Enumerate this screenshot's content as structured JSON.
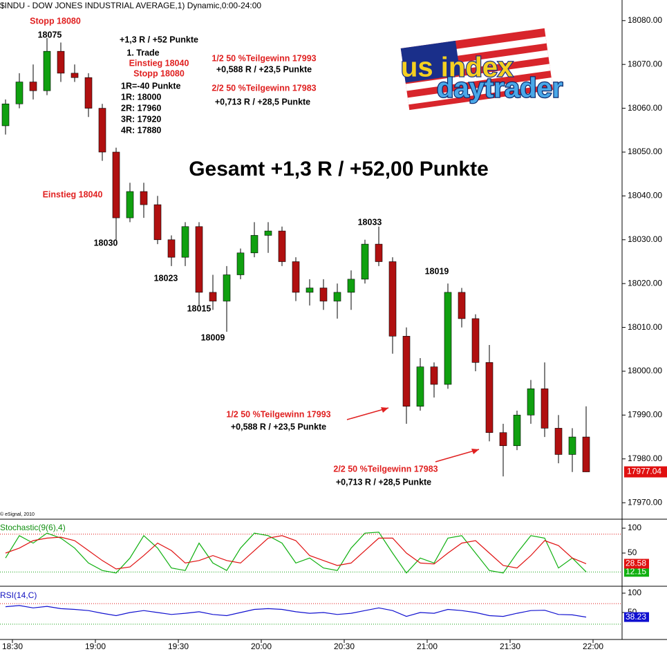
{
  "header": "$INDU - DOW JONES INDUSTRIAL AVERAGE,1) Dynamic,0:00-24:00",
  "copyright": "© eSignal, 2010",
  "logo": [
    "us index",
    "daytrader"
  ],
  "annotations": [
    {
      "text": "Stopp 18080",
      "color": "#e02020"
    },
    {
      "text": "18075",
      "color": "#000000"
    },
    {
      "text": "+1,3 R / +52 Punkte",
      "color": "#000000"
    },
    {
      "text": "1. Trade",
      "color": "#000000"
    },
    {
      "text": "Einstieg 18040",
      "color": "#e02020"
    },
    {
      "text": "Stopp 18080",
      "color": "#e02020"
    },
    {
      "text": "1R=-40 Punkte",
      "color": "#000000"
    },
    {
      "text": "1R: 18000",
      "color": "#000000"
    },
    {
      "text": "2R: 17960",
      "color": "#000000"
    },
    {
      "text": "3R: 17920",
      "color": "#000000"
    },
    {
      "text": "4R: 17880",
      "color": "#000000"
    },
    {
      "text": "1/2 50 %Teilgewinn 17993",
      "color": "#e02020"
    },
    {
      "text": "+0,588 R / +23,5 Punkte",
      "color": "#000000"
    },
    {
      "text": "2/2 50 %Teilgewinn 17983",
      "color": "#e02020"
    },
    {
      "text": "+0,713 R / +28,5 Punkte",
      "color": "#000000"
    },
    {
      "text": "Gesamt +1,3 R / +52,00 Punkte",
      "color": "#000000"
    },
    {
      "text": "Einstieg 18040",
      "color": "#e02020"
    },
    {
      "text": "18030",
      "color": "#000000"
    },
    {
      "text": "18023",
      "color": "#000000"
    },
    {
      "text": "18015",
      "color": "#000000"
    },
    {
      "text": "18009",
      "color": "#000000"
    },
    {
      "text": "18033",
      "color": "#000000"
    },
    {
      "text": "18019",
      "color": "#000000"
    },
    {
      "text": "1/2 50 %Teilgewinn 17993",
      "color": "#e02020"
    },
    {
      "text": "+0,588 R / +23,5 Punkte",
      "color": "#000000"
    },
    {
      "text": "2/2 50 %Teilgewinn 17983",
      "color": "#e02020"
    },
    {
      "text": "+0,713 R / +28,5 Punkte",
      "color": "#000000"
    }
  ],
  "chart_data": [
    {
      "type": "candlestick",
      "up_color": "#10a010",
      "down_color": "#b01010",
      "x": [
        1105,
        1110,
        1115,
        1120,
        1125,
        1130,
        1135,
        1140,
        1145,
        1150,
        1155,
        1160,
        1165,
        1170,
        1175,
        1180,
        1185,
        1190,
        1195,
        1200,
        1205,
        1210,
        1215,
        1220,
        1225,
        1230,
        1235,
        1240,
        1245,
        1250,
        1255,
        1260,
        1265,
        1270,
        1275,
        1280,
        1285,
        1290,
        1295,
        1300,
        1305,
        1310,
        1315
      ],
      "open": [
        18056,
        18061,
        18066,
        18064,
        18073,
        18068,
        18067,
        18060,
        18050,
        18035,
        18041,
        18038,
        18030,
        18026,
        18033,
        18018,
        18016,
        18022,
        18027,
        18031,
        18032,
        18025,
        18018,
        18019,
        18016,
        18018,
        18021,
        18029,
        18025,
        18008,
        17992,
        18001,
        17997,
        18018,
        18012,
        18002,
        17986,
        17983,
        17990,
        17996,
        17987,
        17981,
        17985
      ],
      "high": [
        18062,
        18068,
        18070,
        18076,
        18075,
        18070,
        18068,
        18061,
        18051,
        18043,
        18043,
        18040,
        18031,
        18034,
        18034,
        18022,
        18024,
        18028,
        18034,
        18034,
        18033,
        18026,
        18021,
        18021,
        18020,
        18023,
        18030,
        18033,
        18026,
        18010,
        18003,
        18002,
        18020,
        18019,
        18013,
        18006,
        17988,
        17991,
        17998,
        18002,
        17990,
        17987,
        17992
      ],
      "low": [
        18054,
        18060,
        18062,
        18063,
        18066,
        18066,
        18058,
        18048,
        18030,
        18034,
        18035,
        18029,
        18024,
        18024,
        18015,
        18014,
        18009,
        18021,
        18026,
        18027,
        18024,
        18016,
        18015,
        18014,
        18012,
        18014,
        18020,
        18024,
        18004,
        17988,
        17991,
        17994,
        17996,
        18010,
        18000,
        17984,
        17976,
        17982,
        17988,
        17985,
        17979,
        17977,
        17977
      ],
      "close": [
        18061,
        18066,
        18064,
        18073,
        18068,
        18067,
        18060,
        18050,
        18035,
        18041,
        18038,
        18030,
        18026,
        18033,
        18018,
        18016,
        18022,
        18027,
        18031,
        18032,
        18025,
        18018,
        18019,
        18016,
        18018,
        18021,
        18029,
        18025,
        18008,
        17992,
        18001,
        17997,
        18018,
        18012,
        18002,
        17986,
        17983,
        17990,
        17996,
        17987,
        17981,
        17985,
        17977.04
      ],
      "xlim": [
        1105.5,
        1330.5
      ],
      "xticks": [
        {
          "value": 1110,
          "label": "18:30"
        },
        {
          "value": 1140,
          "label": "19:00"
        },
        {
          "value": 1170,
          "label": "19:30"
        },
        {
          "value": 1200,
          "label": "20:00"
        },
        {
          "value": 1230,
          "label": "20:30"
        },
        {
          "value": 1260,
          "label": "21:00"
        },
        {
          "value": 1290,
          "label": "21:30"
        },
        {
          "value": 1320,
          "label": "22:00"
        }
      ],
      "ylim": [
        17966.4,
        18084.7
      ],
      "yticks": [
        {
          "value": 18080,
          "label": "18080.00"
        },
        {
          "value": 18070,
          "label": "18070.00"
        },
        {
          "value": 18060,
          "label": "18060.00"
        },
        {
          "value": 18050,
          "label": "18050.00"
        },
        {
          "value": 18040,
          "label": "18040.00"
        },
        {
          "value": 18030,
          "label": "18030.00"
        },
        {
          "value": 18020,
          "label": "18020.00"
        },
        {
          "value": 18010,
          "label": "18010.00"
        },
        {
          "value": 18000,
          "label": "18000.00"
        },
        {
          "value": 17990,
          "label": "17990.00"
        },
        {
          "value": 17980,
          "label": "17980.00"
        },
        {
          "value": 17970,
          "label": "17970.00"
        }
      ]
    },
    {
      "type": "line",
      "title": "Stochastic(9(6),4)",
      "title_color": "#109010",
      "series": [
        {
          "color": "#10b010",
          "values": [
            40,
            85,
            70,
            90,
            80,
            60,
            30,
            15,
            10,
            40,
            85,
            60,
            20,
            15,
            70,
            30,
            15,
            60,
            90,
            85,
            70,
            30,
            40,
            20,
            15,
            60,
            90,
            92,
            50,
            10,
            40,
            30,
            80,
            85,
            50,
            15,
            10,
            50,
            85,
            80,
            20,
            40,
            12.15
          ]
        },
        {
          "color": "#e01010",
          "values": [
            50,
            60,
            75,
            80,
            82,
            75,
            55,
            35,
            18,
            22,
            45,
            70,
            55,
            30,
            35,
            45,
            35,
            30,
            55,
            80,
            85,
            75,
            45,
            35,
            25,
            30,
            55,
            80,
            80,
            50,
            30,
            28,
            50,
            70,
            75,
            50,
            25,
            20,
            45,
            75,
            65,
            40,
            28.58
          ]
        }
      ],
      "levels": [
        {
          "value": 88,
          "color": "#e01010"
        },
        {
          "value": 12,
          "color": "#10a010"
        }
      ],
      "ylim": [
        -16.7,
        116.7
      ],
      "yticks": [
        100,
        50
      ]
    },
    {
      "type": "line",
      "title": "RSI(14,C)",
      "title_color": "#1010c0",
      "series": [
        {
          "color": "#1010d0",
          "values": [
            65,
            68,
            62,
            66,
            60,
            58,
            55,
            48,
            42,
            50,
            55,
            50,
            45,
            48,
            52,
            45,
            42,
            50,
            58,
            60,
            58,
            52,
            48,
            50,
            45,
            48,
            55,
            62,
            55,
            40,
            50,
            48,
            58,
            55,
            50,
            42,
            40,
            48,
            55,
            56,
            45,
            44,
            38.23
          ]
        }
      ],
      "levels": [
        {
          "value": 73,
          "color": "#e01010"
        },
        {
          "value": 20,
          "color": "#10a010"
        }
      ],
      "ylim": [
        -19.6,
        114.3
      ],
      "yticks": [
        100,
        50
      ]
    }
  ]
}
